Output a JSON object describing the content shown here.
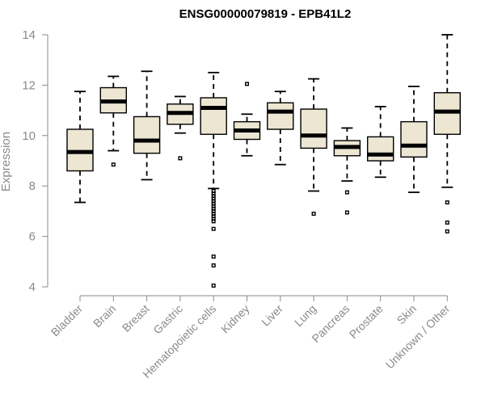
{
  "chart_data": {
    "type": "box",
    "title": "ENSG00000079819 - EPB41L2",
    "xlabel": "",
    "ylabel": "Expression",
    "ylim": [
      4,
      14
    ],
    "yticks": [
      4,
      6,
      8,
      10,
      12,
      14
    ],
    "grid": false,
    "box_fill": "#ece6d2",
    "categories": [
      "Bladder",
      "Brain",
      "Breast",
      "Gastric",
      "Hematopoietic cells",
      "Kidney",
      "Liver",
      "Lung",
      "Pancreas",
      "Prostate",
      "Skin",
      "Unknown / Other"
    ],
    "boxes": [
      {
        "lower": 7.35,
        "q1": 8.6,
        "median": 9.35,
        "q3": 10.25,
        "upper": 11.75,
        "outliers": []
      },
      {
        "lower": 9.4,
        "q1": 10.9,
        "median": 11.35,
        "q3": 11.9,
        "upper": 12.35,
        "outliers": [
          8.85
        ]
      },
      {
        "lower": 8.25,
        "q1": 9.3,
        "median": 9.8,
        "q3": 10.75,
        "upper": 12.55,
        "outliers": []
      },
      {
        "lower": 10.1,
        "q1": 10.45,
        "median": 10.9,
        "q3": 11.25,
        "upper": 11.55,
        "outliers": [
          9.1
        ]
      },
      {
        "lower": 7.9,
        "q1": 10.05,
        "median": 11.1,
        "q3": 11.5,
        "upper": 12.5,
        "outliers": [
          7.8,
          7.7,
          7.6,
          7.5,
          7.4,
          7.3,
          7.2,
          7.1,
          7.0,
          6.9,
          6.8,
          6.7,
          6.6,
          6.3,
          5.2,
          4.85,
          4.05
        ]
      },
      {
        "lower": 9.2,
        "q1": 9.85,
        "median": 10.2,
        "q3": 10.55,
        "upper": 10.85,
        "outliers": [
          12.05
        ]
      },
      {
        "lower": 8.85,
        "q1": 10.25,
        "median": 10.95,
        "q3": 11.3,
        "upper": 11.75,
        "outliers": []
      },
      {
        "lower": 7.8,
        "q1": 9.5,
        "median": 10.0,
        "q3": 11.05,
        "upper": 12.25,
        "outliers": [
          6.9
        ]
      },
      {
        "lower": 8.2,
        "q1": 9.2,
        "median": 9.55,
        "q3": 9.8,
        "upper": 10.3,
        "outliers": [
          7.75,
          6.95
        ]
      },
      {
        "lower": 8.35,
        "q1": 9.0,
        "median": 9.25,
        "q3": 9.95,
        "upper": 11.15,
        "outliers": []
      },
      {
        "lower": 7.75,
        "q1": 9.15,
        "median": 9.6,
        "q3": 10.55,
        "upper": 11.95,
        "outliers": []
      },
      {
        "lower": 7.95,
        "q1": 10.05,
        "median": 10.95,
        "q3": 11.7,
        "upper": 14.0,
        "outliers": [
          7.35,
          6.55,
          6.2
        ]
      }
    ]
  }
}
